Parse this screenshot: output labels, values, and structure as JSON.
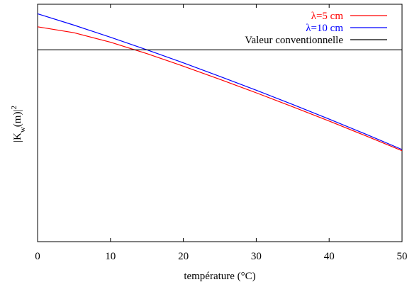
{
  "chart_data": {
    "type": "line",
    "title": "",
    "xlabel": "température (°C)",
    "ylabel": "|K_w(m)|²",
    "ylabel_parts": {
      "base": "|K",
      "sub": "w",
      "mid": "(m)|",
      "sup": "2"
    },
    "xlim": [
      0,
      50
    ],
    "ylim": [
      0,
      1
    ],
    "x_ticks": [
      "0",
      "10",
      "20",
      "30",
      "40",
      "50"
    ],
    "y_ticks": [],
    "grid": false,
    "legend_position": "top-right",
    "series": [
      {
        "name": "λ=5 cm",
        "color": "#ff0000",
        "x": [
          0,
          5,
          10,
          15,
          20,
          25,
          30,
          35,
          40,
          45,
          50
        ],
        "y": [
          0.905,
          0.88,
          0.84,
          0.792,
          0.739,
          0.684,
          0.627,
          0.568,
          0.508,
          0.446,
          0.383
        ]
      },
      {
        "name": "λ=10 cm",
        "color": "#0000ff",
        "x": [
          0,
          5,
          10,
          15,
          20,
          25,
          30,
          35,
          40,
          45,
          50
        ],
        "y": [
          0.96,
          0.912,
          0.861,
          0.808,
          0.753,
          0.696,
          0.638,
          0.578,
          0.516,
          0.453,
          0.388
        ]
      },
      {
        "name": "Valeur conventionnelle",
        "color": "#000000",
        "x": [
          0,
          50
        ],
        "y": [
          0.808,
          0.808
        ]
      }
    ]
  }
}
